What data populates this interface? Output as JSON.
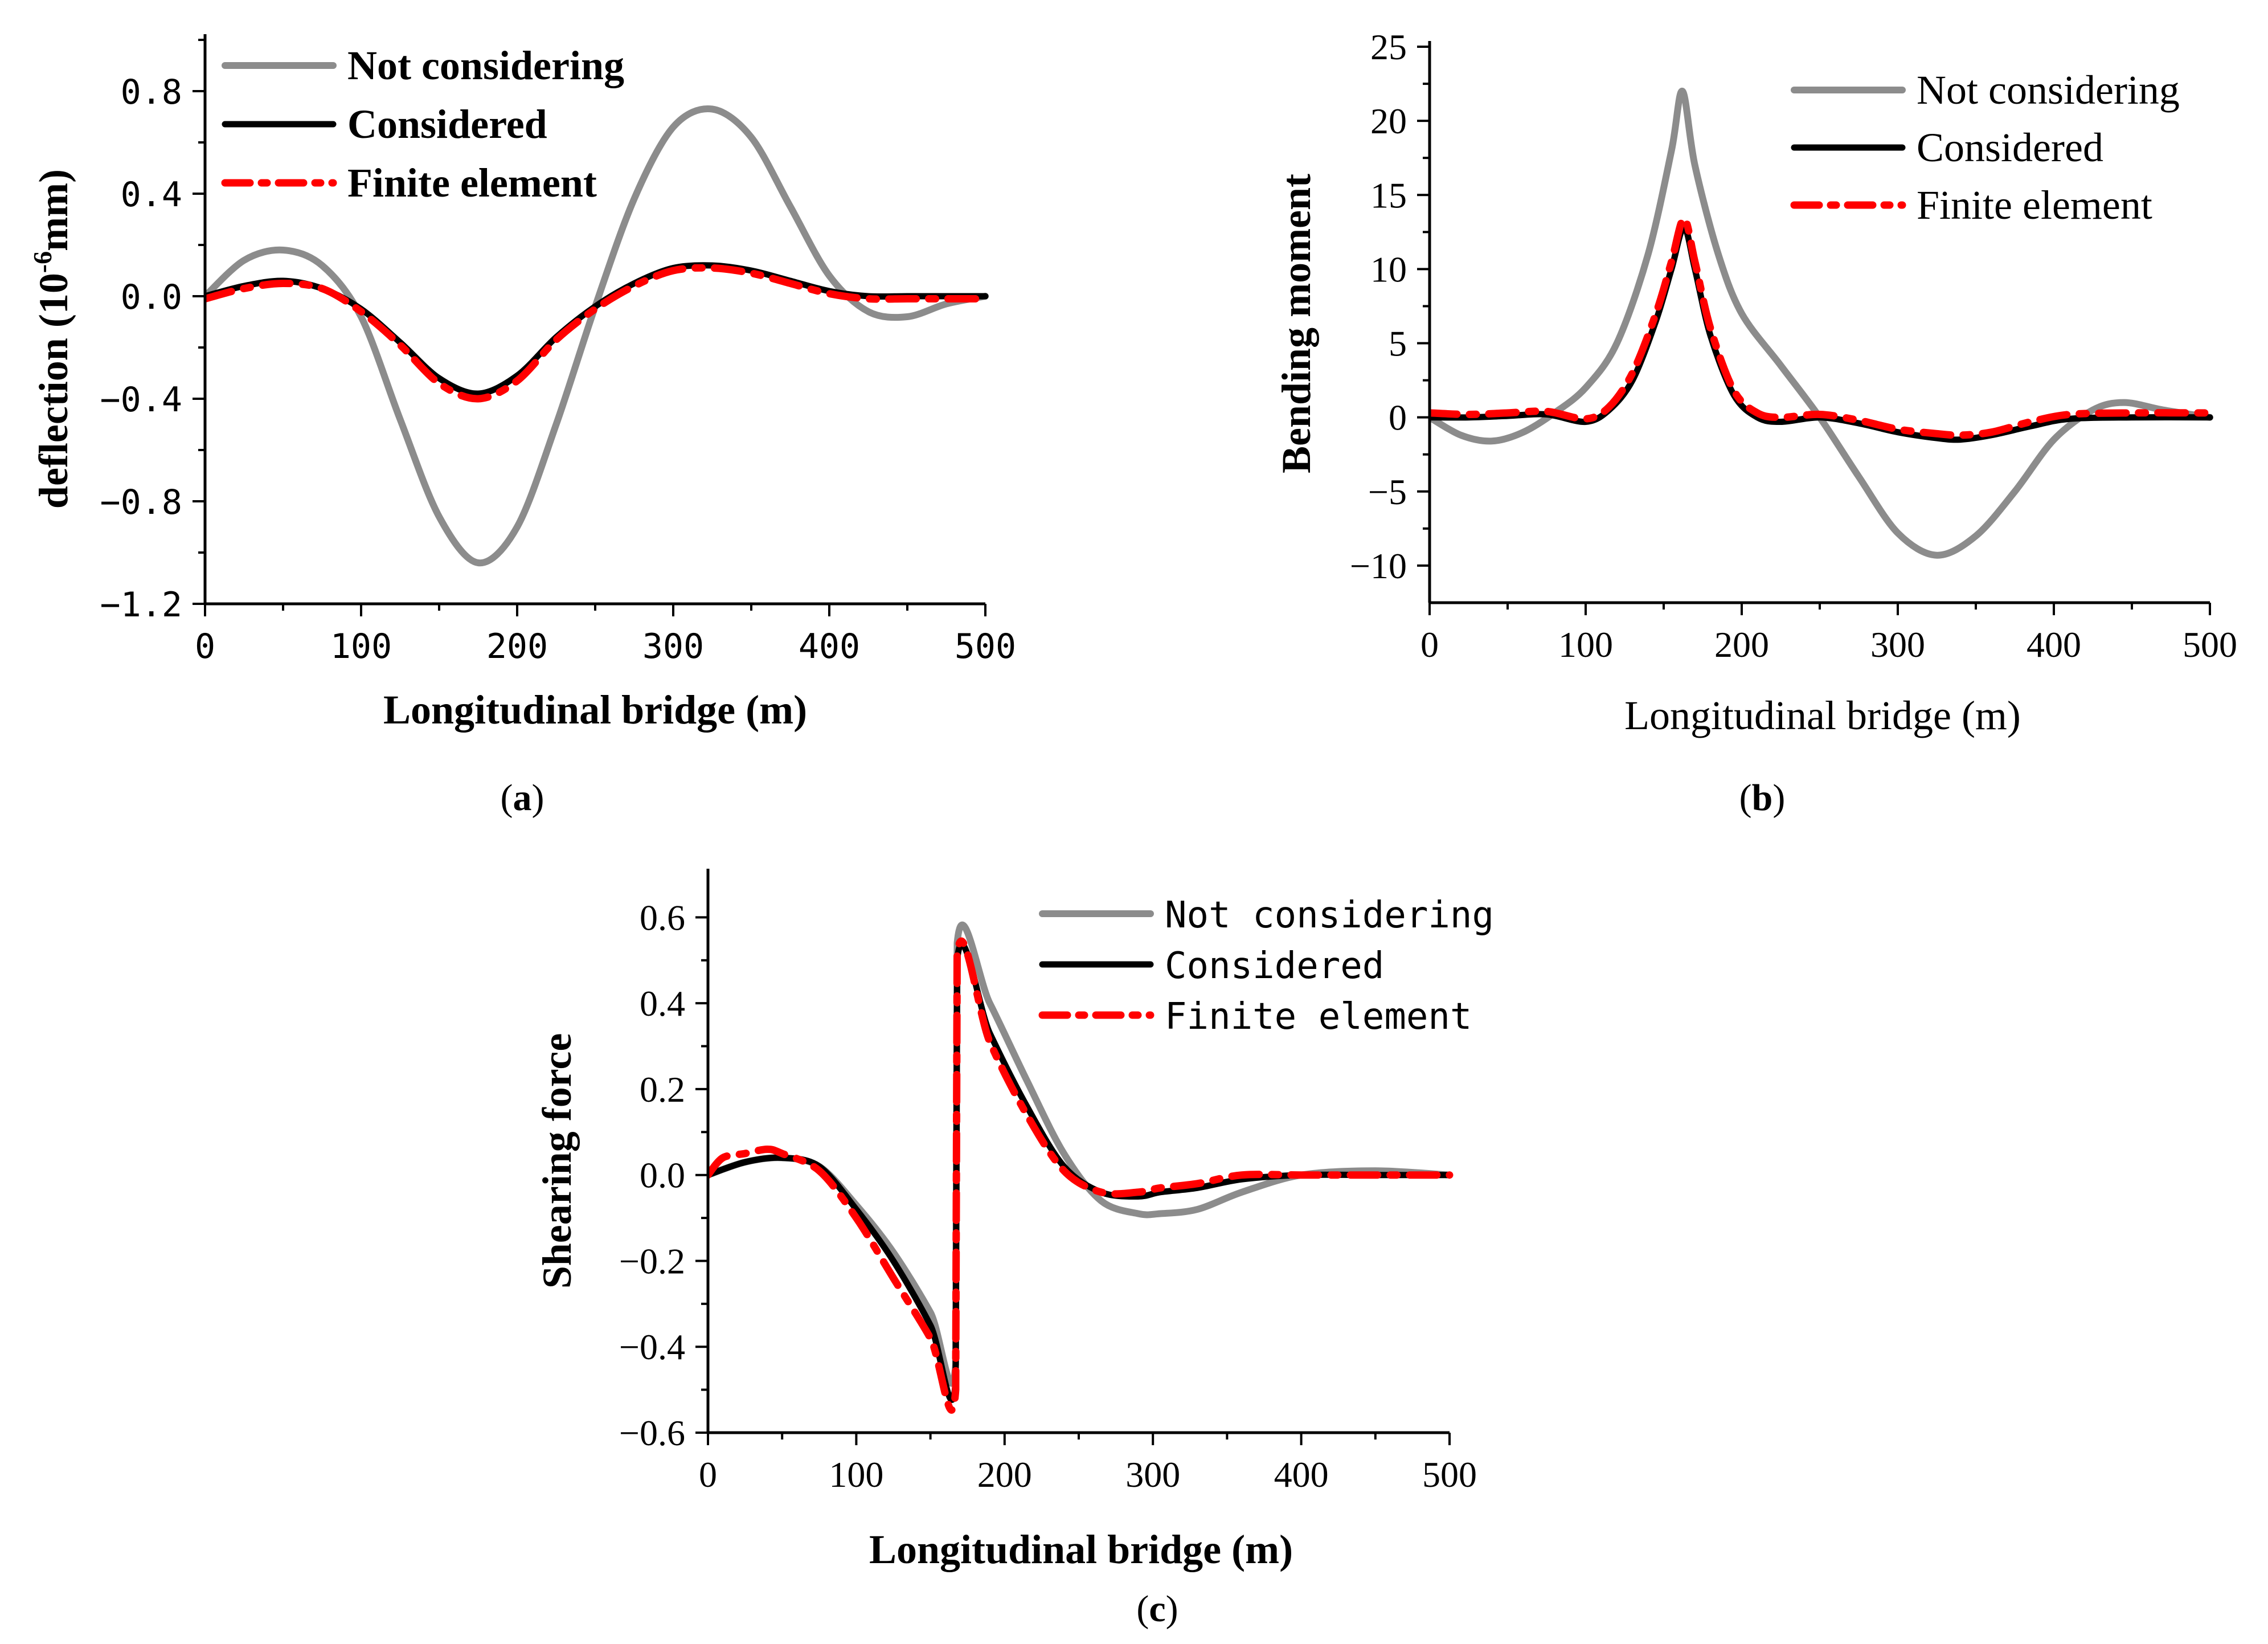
{
  "colors": {
    "not_considering": "#8c8c8c",
    "considered": "#000000",
    "finite_element": "#ff0000"
  },
  "chart_data": [
    {
      "id": "a",
      "type": "line",
      "caption_letter": "a",
      "title": "",
      "xlabel": "Longitudinal bridge (m)",
      "ylabel": "deflection (10-6mm)",
      "ylabel_main": "deflection (10",
      "ylabel_sup": "-6",
      "ylabel_tail": "mm)",
      "xlim": [
        0,
        500
      ],
      "ylim": [
        -1.2,
        1.0
      ],
      "xticks": [
        0,
        100,
        200,
        300,
        400,
        500
      ],
      "xtick_labels": [
        "0",
        "100",
        "200",
        "300",
        "400",
        "500"
      ],
      "yticks": [
        -1.2,
        -0.8,
        -0.4,
        0.0,
        0.4,
        0.8
      ],
      "ytick_labels": [
        "−1.2",
        "−0.8",
        "−0.4",
        "0.0",
        "0.4",
        "0.8"
      ],
      "legend": [
        "Not considering",
        "Considered",
        "Finite element"
      ],
      "legend_position": "top-left",
      "series": [
        {
          "name": "Not considering",
          "x": [
            0,
            25,
            50,
            75,
            100,
            125,
            150,
            175,
            200,
            225,
            250,
            275,
            300,
            325,
            350,
            375,
            400,
            425,
            450,
            475,
            500
          ],
          "y": [
            0.0,
            0.14,
            0.18,
            0.12,
            -0.08,
            -0.48,
            -0.86,
            -1.04,
            -0.9,
            -0.5,
            -0.04,
            0.38,
            0.66,
            0.73,
            0.62,
            0.35,
            0.08,
            -0.06,
            -0.08,
            -0.03,
            0.0
          ]
        },
        {
          "name": "Considered",
          "x": [
            0,
            25,
            50,
            75,
            100,
            125,
            150,
            175,
            200,
            225,
            250,
            275,
            300,
            325,
            350,
            375,
            400,
            425,
            450,
            475,
            500
          ],
          "y": [
            0.0,
            0.04,
            0.06,
            0.03,
            -0.05,
            -0.18,
            -0.32,
            -0.38,
            -0.31,
            -0.16,
            -0.04,
            0.05,
            0.11,
            0.12,
            0.1,
            0.06,
            0.02,
            0.0,
            0.0,
            0.0,
            0.0
          ]
        },
        {
          "name": "Finite element",
          "x": [
            0,
            25,
            50,
            75,
            100,
            125,
            150,
            175,
            200,
            225,
            250,
            275,
            300,
            325,
            350,
            375,
            400,
            425,
            450,
            475,
            500
          ],
          "y": [
            -0.01,
            0.03,
            0.05,
            0.03,
            -0.06,
            -0.19,
            -0.34,
            -0.4,
            -0.33,
            -0.17,
            -0.05,
            0.04,
            0.1,
            0.11,
            0.09,
            0.05,
            0.01,
            -0.01,
            -0.01,
            -0.01,
            -0.01
          ]
        }
      ]
    },
    {
      "id": "b",
      "type": "line",
      "caption_letter": "b",
      "title": "",
      "xlabel": "Longitudinal bridge (m)",
      "ylabel": "Bending moment",
      "xlim": [
        0,
        500
      ],
      "ylim": [
        -12.5,
        25
      ],
      "xticks": [
        0,
        100,
        200,
        300,
        400,
        500
      ],
      "xtick_labels": [
        "0",
        "100",
        "200",
        "300",
        "400",
        "500"
      ],
      "yticks": [
        -10,
        -5,
        0,
        5,
        10,
        15,
        20,
        25
      ],
      "ytick_labels": [
        "−10",
        "−5",
        "0",
        "5",
        "10",
        "15",
        "20",
        "25"
      ],
      "legend": [
        "Not considering",
        "Considered",
        "Finite element"
      ],
      "legend_position": "top-right",
      "series": [
        {
          "name": "Not considering",
          "x": [
            0,
            20,
            40,
            60,
            80,
            100,
            120,
            140,
            155,
            162,
            170,
            185,
            200,
            225,
            250,
            275,
            300,
            325,
            350,
            375,
            400,
            425,
            445,
            470,
            500
          ],
          "y": [
            0.0,
            -1.2,
            -1.6,
            -1.0,
            0.3,
            2.0,
            5.0,
            11.0,
            18.0,
            22.0,
            17.0,
            11.0,
            7.0,
            3.5,
            0.0,
            -4.0,
            -7.8,
            -9.3,
            -8.0,
            -5.0,
            -1.5,
            0.5,
            1.0,
            0.5,
            0.0
          ]
        },
        {
          "name": "Considered",
          "x": [
            0,
            25,
            50,
            75,
            100,
            115,
            130,
            145,
            155,
            163,
            170,
            180,
            195,
            210,
            225,
            250,
            275,
            300,
            325,
            340,
            360,
            385,
            410,
            450,
            500
          ],
          "y": [
            0.0,
            0.0,
            0.1,
            0.2,
            -0.3,
            0.5,
            2.5,
            6.5,
            10.0,
            12.8,
            10.0,
            5.5,
            1.5,
            0.0,
            -0.3,
            0.0,
            -0.4,
            -1.0,
            -1.4,
            -1.5,
            -1.2,
            -0.6,
            -0.1,
            0.0,
            0.0
          ]
        },
        {
          "name": "Finite element",
          "x": [
            0,
            25,
            50,
            75,
            100,
            115,
            130,
            145,
            155,
            163,
            170,
            180,
            195,
            210,
            225,
            250,
            275,
            300,
            325,
            340,
            360,
            385,
            410,
            450,
            500
          ],
          "y": [
            0.3,
            0.2,
            0.3,
            0.4,
            -0.1,
            0.7,
            3.0,
            7.0,
            10.5,
            13.4,
            10.5,
            6.0,
            1.8,
            0.3,
            0.0,
            0.2,
            -0.2,
            -0.8,
            -1.1,
            -1.2,
            -1.0,
            -0.3,
            0.2,
            0.3,
            0.3
          ]
        }
      ]
    },
    {
      "id": "c",
      "type": "line",
      "caption_letter": "c",
      "title": "",
      "xlabel": "Longitudinal bridge (m)",
      "ylabel": "Shearing force",
      "xlim": [
        0,
        500
      ],
      "ylim": [
        -0.6,
        0.7
      ],
      "xticks": [
        0,
        100,
        200,
        300,
        400,
        500
      ],
      "xtick_labels": [
        "0",
        "100",
        "200",
        "300",
        "400",
        "500"
      ],
      "yticks": [
        -0.6,
        -0.4,
        -0.2,
        0.0,
        0.2,
        0.4,
        0.6
      ],
      "ytick_labels": [
        "−0.6",
        "−0.4",
        "−0.2",
        "0.0",
        "0.2",
        "0.4",
        "0.6"
      ],
      "legend": [
        "Not considering",
        "Considered",
        "Finite element"
      ],
      "legend_position": "top-right",
      "series": [
        {
          "name": "Not considering",
          "x": [
            0,
            25,
            50,
            75,
            100,
            125,
            150,
            167,
            168,
            190,
            215,
            240,
            265,
            290,
            305,
            330,
            360,
            400,
            450,
            500
          ],
          "y": [
            0.0,
            0.03,
            0.04,
            0.02,
            -0.07,
            -0.18,
            -0.32,
            -0.44,
            0.54,
            0.4,
            0.22,
            0.05,
            -0.06,
            -0.09,
            -0.09,
            -0.08,
            -0.04,
            0.0,
            0.01,
            0.0
          ]
        },
        {
          "name": "Considered",
          "x": [
            0,
            25,
            50,
            75,
            100,
            125,
            150,
            167,
            168,
            190,
            215,
            240,
            265,
            290,
            305,
            330,
            360,
            400,
            450,
            500
          ],
          "y": [
            0.0,
            0.03,
            0.04,
            0.02,
            -0.08,
            -0.2,
            -0.35,
            -0.48,
            0.5,
            0.33,
            0.16,
            0.02,
            -0.04,
            -0.05,
            -0.04,
            -0.03,
            -0.01,
            0.0,
            0.0,
            0.0
          ]
        },
        {
          "name": "Finite element",
          "x": [
            0,
            10,
            25,
            40,
            50,
            75,
            100,
            125,
            150,
            167,
            168,
            190,
            215,
            240,
            265,
            290,
            305,
            330,
            360,
            400,
            450,
            500
          ],
          "y": [
            0.0,
            0.04,
            0.05,
            0.06,
            0.05,
            0.01,
            -0.1,
            -0.24,
            -0.38,
            -0.5,
            0.51,
            0.31,
            0.14,
            0.01,
            -0.04,
            -0.04,
            -0.03,
            -0.02,
            0.0,
            0.0,
            0.0,
            0.0
          ]
        }
      ]
    }
  ]
}
